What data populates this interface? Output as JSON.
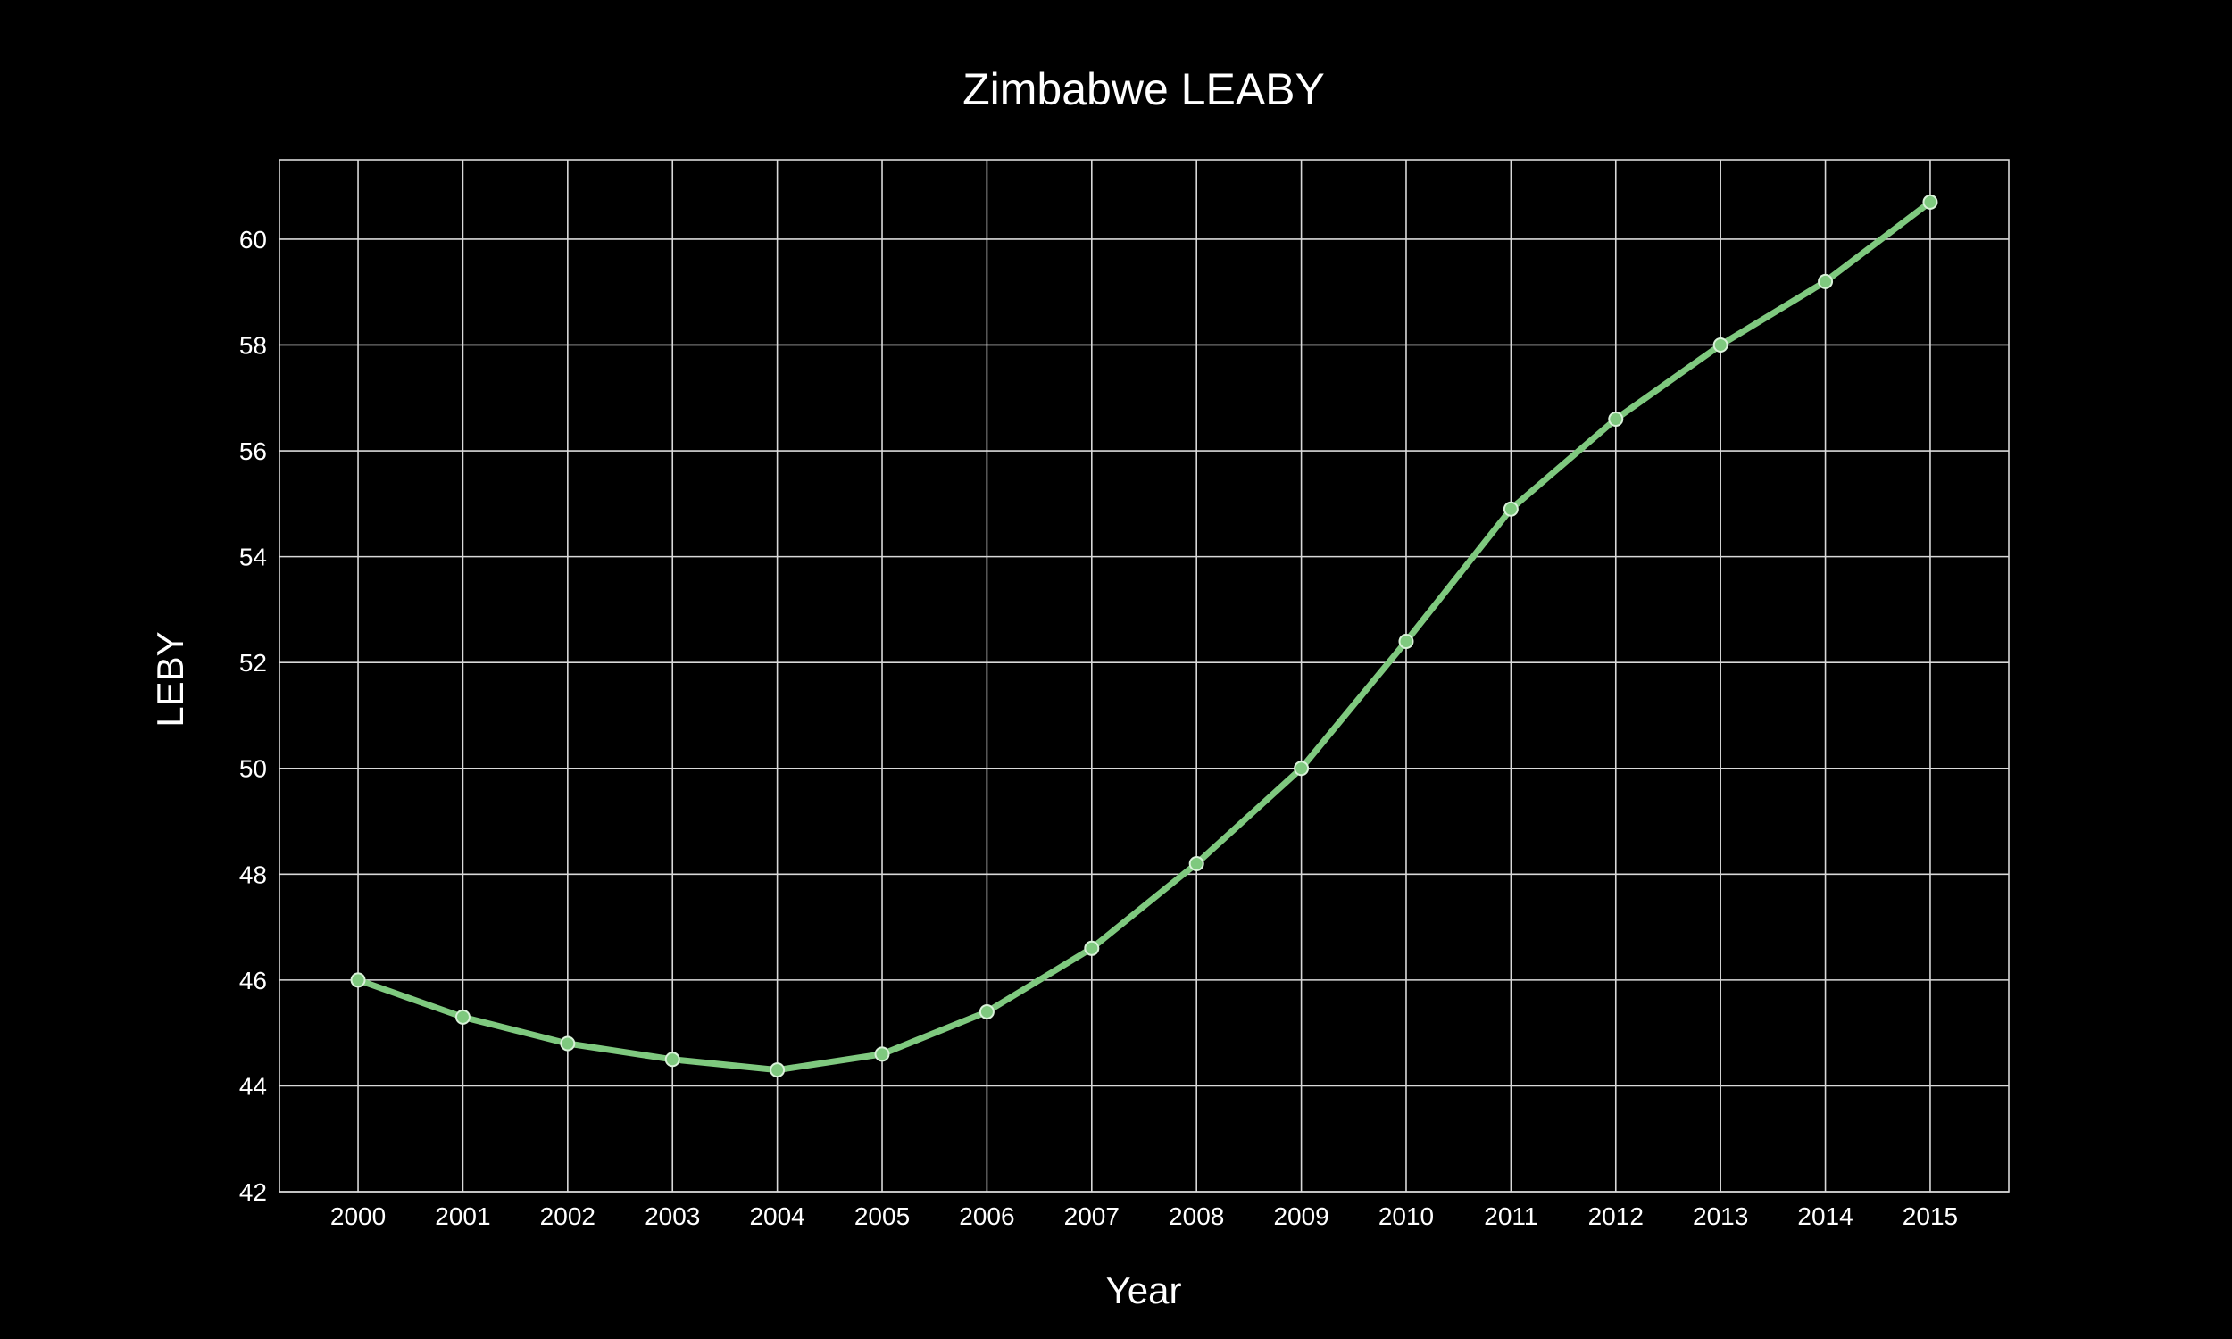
{
  "chart_data": {
    "type": "line",
    "title": "Zimbabwe LEABY",
    "xlabel": "Year",
    "ylabel": "LEBY",
    "x": [
      2000,
      2001,
      2002,
      2003,
      2004,
      2005,
      2006,
      2007,
      2008,
      2009,
      2010,
      2011,
      2012,
      2013,
      2014,
      2015
    ],
    "x_tick_labels": [
      "2000",
      "2001",
      "2002",
      "2003",
      "2004",
      "2005",
      "2006",
      "2007",
      "2008",
      "2009",
      "2010",
      "2011",
      "2012",
      "2013",
      "2014",
      "2015"
    ],
    "series": [
      {
        "values": [
          46.0,
          45.3,
          44.8,
          44.5,
          44.3,
          44.6,
          45.4,
          46.6,
          48.2,
          50.0,
          52.4,
          54.9,
          56.6,
          58.0,
          59.2,
          60.7
        ]
      }
    ],
    "ylim": [
      42,
      61.5
    ],
    "xlim": [
      1999.25,
      2015.75
    ],
    "y_ticks": [
      42,
      44,
      46,
      48,
      50,
      52,
      54,
      56,
      58,
      60
    ],
    "y_tick_labels": [
      "42",
      "44",
      "46",
      "48",
      "50",
      "52",
      "54",
      "56",
      "58",
      "60"
    ],
    "grid": true,
    "colors": {
      "background": "#000000",
      "line": "#7fc97f",
      "marker_fill": "#7fc97f",
      "marker_edge": "#d9f2d9",
      "grid": "#d9d9d9",
      "text": "#ffffff"
    }
  }
}
